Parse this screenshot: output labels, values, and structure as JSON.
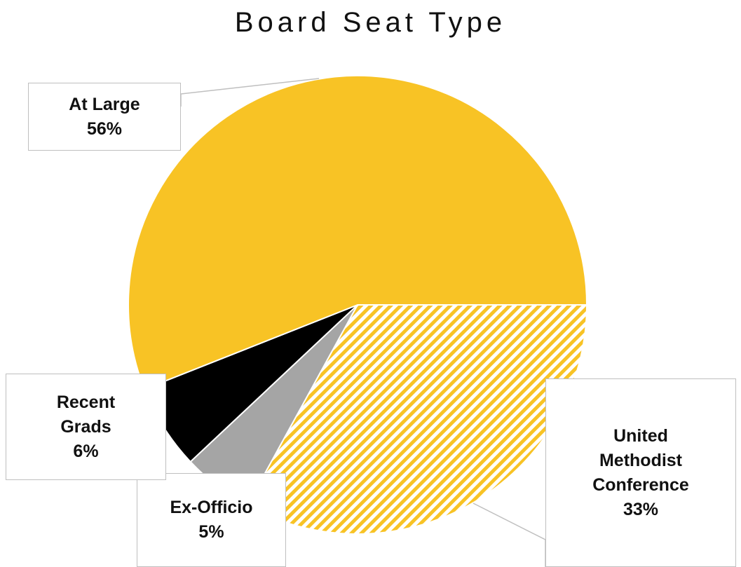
{
  "chart_data": {
    "type": "pie",
    "title": "Board Seat Type",
    "categories": [
      "United Methodist Conference",
      "Ex-Officio",
      "Recent Grads",
      "At Large"
    ],
    "values": [
      33,
      5,
      6,
      56
    ],
    "value_labels": [
      "33%",
      "5%",
      "6%",
      "56%"
    ],
    "colors": [
      "#F8C325",
      "#A5A5A5",
      "#000000",
      "#F8C325"
    ],
    "patterns": [
      "hatch",
      "solid",
      "solid",
      "solid"
    ],
    "start_angle": 90
  }
}
